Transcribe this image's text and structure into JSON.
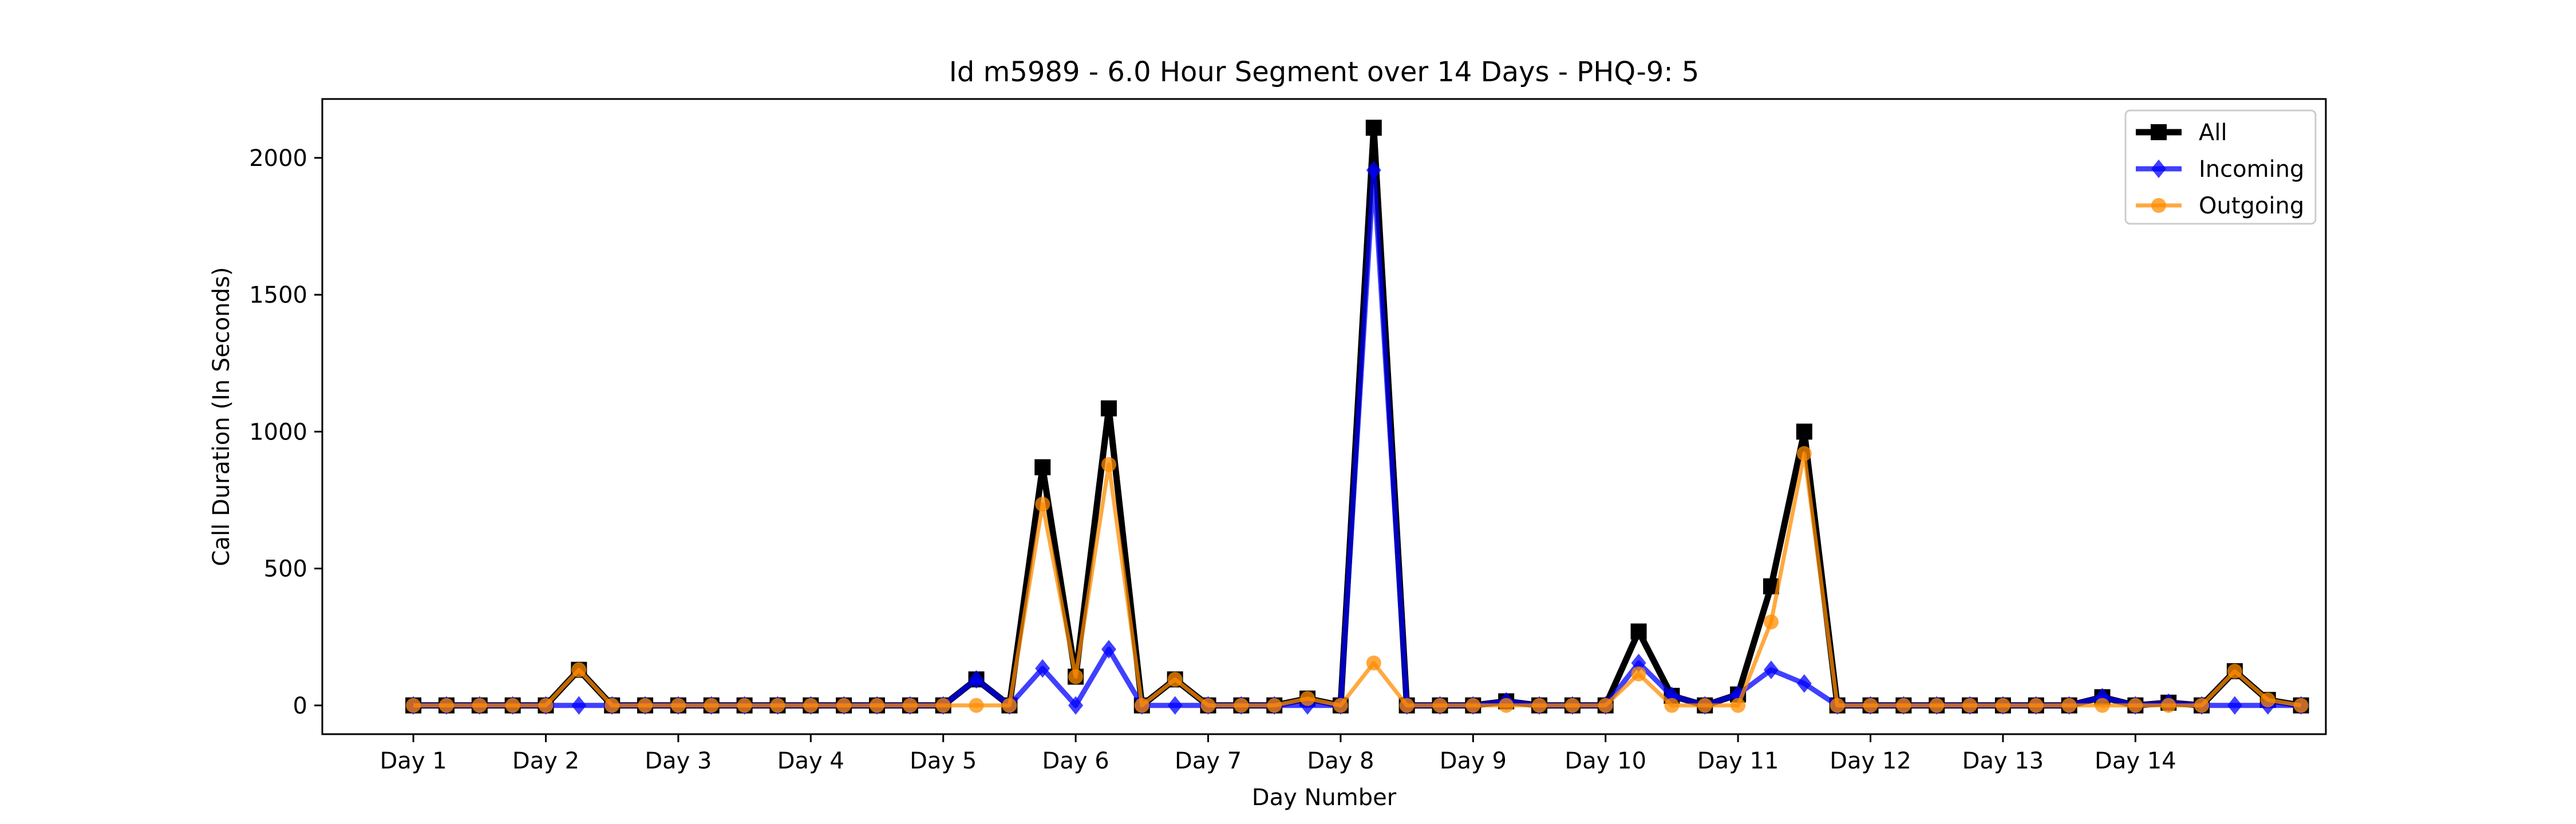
{
  "chart_data": {
    "type": "line",
    "title": "Id m5989 - 6.0 Hour Segment over 14 Days - PHQ-9: 5",
    "xlabel": "Day Number",
    "ylabel": "Call Duration (In Seconds)",
    "x_ticks": [
      {
        "x": 0,
        "label": "Day 1"
      },
      {
        "x": 4,
        "label": "Day 2"
      },
      {
        "x": 8,
        "label": "Day 3"
      },
      {
        "x": 12,
        "label": "Day 4"
      },
      {
        "x": 16,
        "label": "Day 5"
      },
      {
        "x": 20,
        "label": "Day 6"
      },
      {
        "x": 24,
        "label": "Day 7"
      },
      {
        "x": 28,
        "label": "Day 8"
      },
      {
        "x": 32,
        "label": "Day 9"
      },
      {
        "x": 36,
        "label": "Day 10"
      },
      {
        "x": 40,
        "label": "Day 11"
      },
      {
        "x": 44,
        "label": "Day 12"
      },
      {
        "x": 48,
        "label": "Day 13"
      },
      {
        "x": 52,
        "label": "Day 14"
      }
    ],
    "y_ticks": [
      0,
      500,
      1000,
      1500,
      2000
    ],
    "xlim": [
      -2.75,
      57.75
    ],
    "ylim": [
      -105,
      2215
    ],
    "grid": false,
    "legend_position": "top-right",
    "series": [
      {
        "name": "All",
        "color": "#000000",
        "marker": "square",
        "values": [
          0,
          0,
          0,
          0,
          0,
          130,
          0,
          0,
          0,
          0,
          0,
          0,
          0,
          0,
          0,
          0,
          0,
          95,
          0,
          870,
          105,
          1085,
          0,
          95,
          0,
          0,
          0,
          25,
          0,
          2110,
          0,
          0,
          0,
          15,
          0,
          0,
          0,
          270,
          35,
          0,
          40,
          435,
          1000,
          0,
          0,
          0,
          0,
          0,
          0,
          0,
          0,
          30,
          0,
          10,
          0,
          125,
          20,
          0
        ]
      },
      {
        "name": "Incoming",
        "color": "#0000ff",
        "marker": "diamond",
        "values": [
          0,
          0,
          0,
          0,
          0,
          0,
          0,
          0,
          0,
          0,
          0,
          0,
          0,
          0,
          0,
          0,
          0,
          95,
          0,
          135,
          0,
          205,
          0,
          0,
          0,
          0,
          0,
          0,
          0,
          1955,
          0,
          0,
          0,
          15,
          0,
          0,
          0,
          155,
          35,
          0,
          40,
          130,
          80,
          0,
          0,
          0,
          0,
          0,
          0,
          0,
          0,
          30,
          0,
          10,
          0,
          0,
          0,
          0
        ]
      },
      {
        "name": "Outgoing",
        "color": "#ff8c00",
        "marker": "circle",
        "values": [
          0,
          0,
          0,
          0,
          0,
          130,
          0,
          0,
          0,
          0,
          0,
          0,
          0,
          0,
          0,
          0,
          0,
          0,
          0,
          735,
          105,
          880,
          0,
          95,
          0,
          0,
          0,
          25,
          0,
          155,
          0,
          0,
          0,
          0,
          0,
          0,
          0,
          115,
          0,
          0,
          0,
          305,
          920,
          0,
          0,
          0,
          0,
          0,
          0,
          0,
          0,
          0,
          0,
          0,
          0,
          125,
          20,
          0
        ]
      }
    ]
  }
}
